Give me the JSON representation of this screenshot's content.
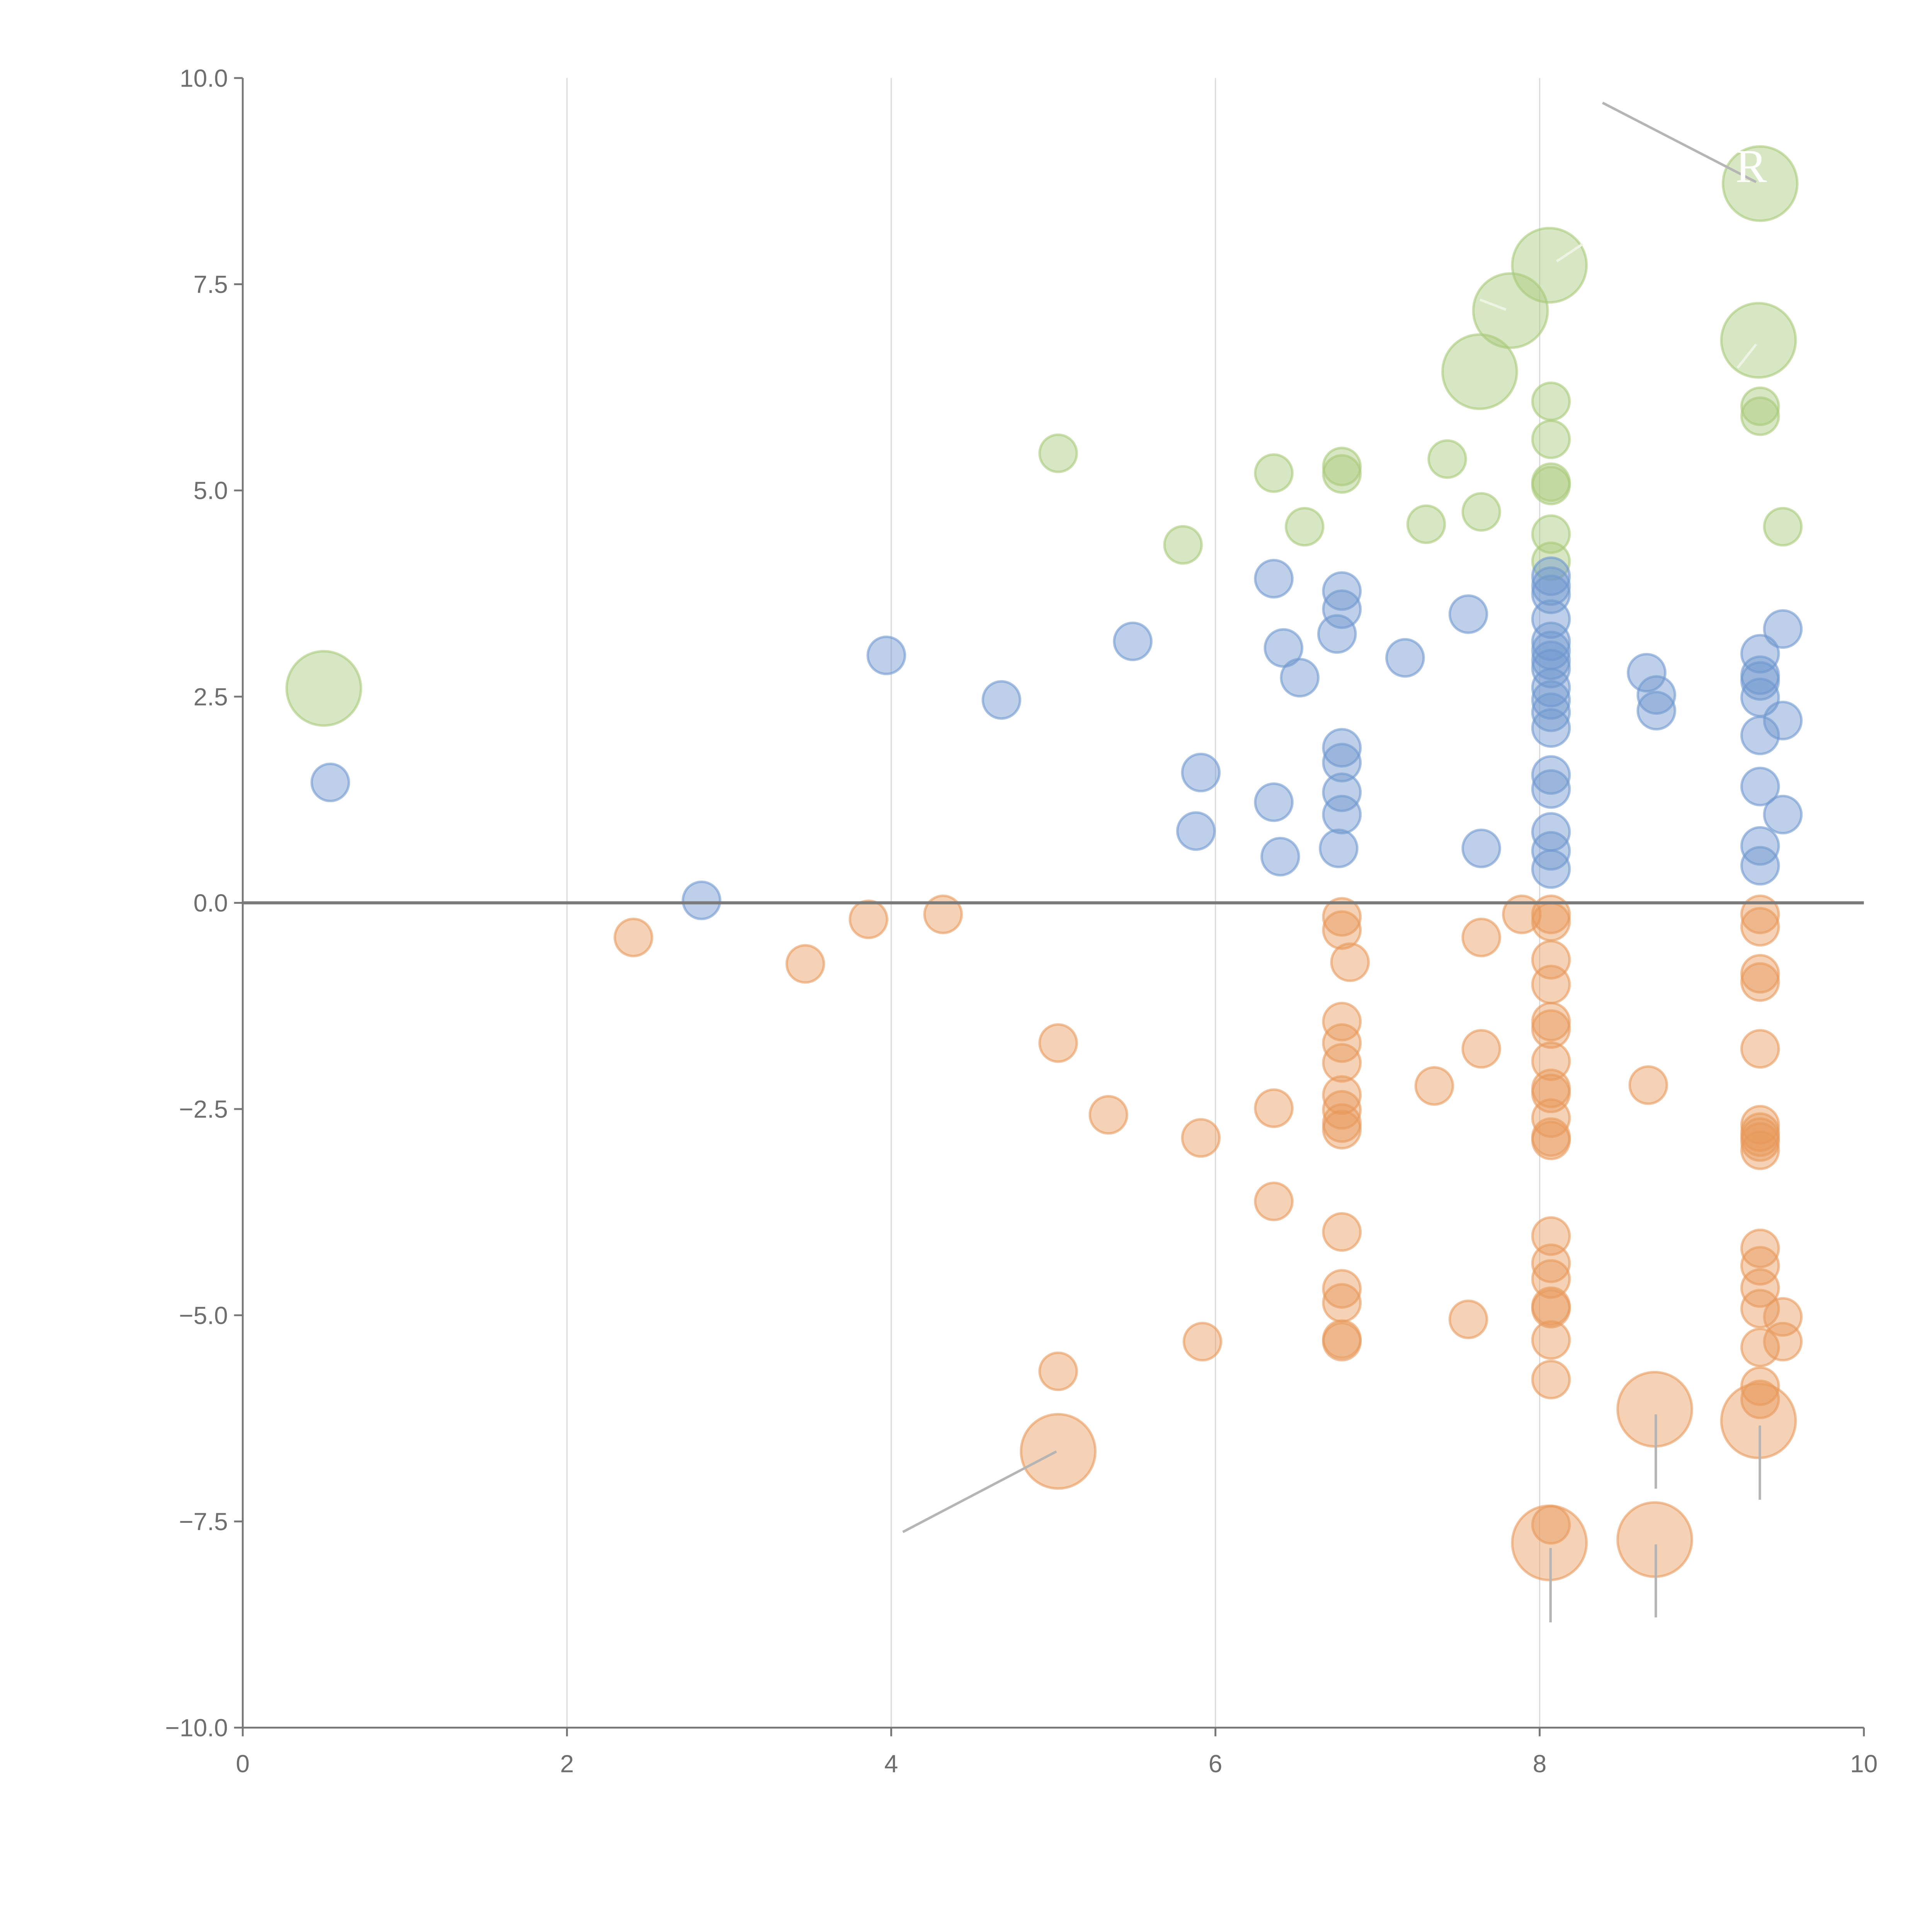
{
  "chart_data": {
    "type": "scatter",
    "title": "",
    "xlabel": "",
    "ylabel": "",
    "xlim": [
      0,
      10
    ],
    "ylim": [
      -10,
      10
    ],
    "grid": "vertical",
    "x_ticks": [
      "0",
      "2",
      "4",
      "6",
      "8",
      "10"
    ],
    "x_tick_values": [
      0,
      2,
      4,
      6,
      8,
      10
    ],
    "y_ticks": [
      "10.0",
      "7.5",
      "5.0",
      "2.5",
      "0.0",
      "−2.5",
      "−5.0",
      "−7.5",
      "−10.0"
    ],
    "y_tick_values": [
      10,
      7.5,
      5,
      2.5,
      0,
      -2.5,
      -5,
      -7.5,
      -10
    ],
    "annotation_label": "R",
    "point_format": "[x, y, size]",
    "series": [
      {
        "name": "green",
        "color": "#a9c97a",
        "points": [
          [
            0.5,
            2.6,
            2
          ],
          [
            5.03,
            5.45,
            1
          ],
          [
            5.8,
            4.34,
            1
          ],
          [
            6.36,
            5.21,
            1
          ],
          [
            6.55,
            4.56,
            1
          ],
          [
            6.78,
            5.29,
            1
          ],
          [
            6.78,
            5.2,
            1
          ],
          [
            7.3,
            4.59,
            1
          ],
          [
            7.43,
            5.38,
            1
          ],
          [
            7.64,
            4.74,
            1
          ],
          [
            7.63,
            6.44,
            2
          ],
          [
            7.82,
            7.18,
            2
          ],
          [
            8.06,
            7.73,
            2
          ],
          [
            8.07,
            6.08,
            1
          ],
          [
            8.07,
            5.62,
            1
          ],
          [
            8.07,
            5.1,
            1
          ],
          [
            8.07,
            5.06,
            1
          ],
          [
            8.07,
            4.47,
            1
          ],
          [
            8.07,
            4.14,
            1
          ],
          [
            9.36,
            8.72,
            2
          ],
          [
            9.35,
            6.82,
            2
          ],
          [
            9.36,
            6.02,
            1
          ],
          [
            9.36,
            5.9,
            1
          ],
          [
            9.5,
            4.56,
            1
          ]
        ]
      },
      {
        "name": "blue",
        "color": "#6f97cf",
        "points": [
          [
            0.54,
            1.46,
            1
          ],
          [
            2.83,
            0.03,
            1
          ],
          [
            3.97,
            3.0,
            1
          ],
          [
            4.68,
            2.46,
            1
          ],
          [
            5.49,
            3.17,
            1
          ],
          [
            5.91,
            1.58,
            1
          ],
          [
            5.88,
            0.87,
            1
          ],
          [
            6.36,
            3.93,
            1
          ],
          [
            6.42,
            3.09,
            1
          ],
          [
            6.52,
            2.73,
            1
          ],
          [
            6.36,
            1.22,
            1
          ],
          [
            6.4,
            0.56,
            1
          ],
          [
            6.78,
            3.78,
            1
          ],
          [
            6.78,
            3.56,
            1
          ],
          [
            6.75,
            3.26,
            1
          ],
          [
            6.78,
            1.88,
            1
          ],
          [
            6.78,
            1.7,
            1
          ],
          [
            6.78,
            1.34,
            1
          ],
          [
            6.78,
            1.07,
            1
          ],
          [
            6.76,
            0.66,
            1
          ],
          [
            7.17,
            2.97,
            1
          ],
          [
            7.56,
            3.5,
            1
          ],
          [
            7.64,
            0.66,
            1
          ],
          [
            8.07,
            3.96,
            1
          ],
          [
            8.07,
            3.84,
            1
          ],
          [
            8.07,
            3.74,
            1
          ],
          [
            8.07,
            3.44,
            1
          ],
          [
            8.07,
            3.17,
            1
          ],
          [
            8.07,
            3.06,
            1
          ],
          [
            8.07,
            2.94,
            1
          ],
          [
            8.07,
            2.84,
            1
          ],
          [
            8.07,
            2.61,
            1
          ],
          [
            8.07,
            2.46,
            1
          ],
          [
            8.07,
            2.31,
            1
          ],
          [
            8.07,
            2.12,
            1
          ],
          [
            8.07,
            1.55,
            1
          ],
          [
            8.07,
            1.38,
            1
          ],
          [
            8.07,
            0.86,
            1
          ],
          [
            8.07,
            0.63,
            1
          ],
          [
            8.07,
            0.41,
            1
          ],
          [
            8.66,
            2.79,
            1
          ],
          [
            8.72,
            2.52,
            1
          ],
          [
            8.72,
            2.33,
            1
          ],
          [
            9.36,
            3.02,
            1
          ],
          [
            9.36,
            2.76,
            1
          ],
          [
            9.36,
            2.69,
            1
          ],
          [
            9.36,
            2.49,
            1
          ],
          [
            9.36,
            2.03,
            1
          ],
          [
            9.36,
            1.41,
            1
          ],
          [
            9.36,
            0.69,
            1
          ],
          [
            9.36,
            0.45,
            1
          ],
          [
            9.5,
            3.32,
            1
          ],
          [
            9.5,
            2.21,
            1
          ],
          [
            9.5,
            1.07,
            1
          ]
        ]
      },
      {
        "name": "orange",
        "color": "#e89a5c",
        "points": [
          [
            2.41,
            -0.42,
            1
          ],
          [
            3.47,
            -0.74,
            1
          ],
          [
            3.86,
            -0.2,
            1
          ],
          [
            4.32,
            -0.14,
            1
          ],
          [
            5.03,
            -1.7,
            1
          ],
          [
            5.34,
            -2.57,
            1
          ],
          [
            5.91,
            -2.85,
            1
          ],
          [
            5.92,
            -5.32,
            1
          ],
          [
            5.03,
            -5.68,
            1
          ],
          [
            5.03,
            -6.65,
            2
          ],
          [
            6.36,
            -2.49,
            1
          ],
          [
            6.36,
            -3.62,
            1
          ],
          [
            6.78,
            -0.17,
            1
          ],
          [
            6.78,
            -0.33,
            1
          ],
          [
            6.78,
            -1.44,
            1
          ],
          [
            6.78,
            -1.7,
            1
          ],
          [
            6.78,
            -1.94,
            1
          ],
          [
            6.78,
            -2.33,
            1
          ],
          [
            6.78,
            -2.51,
            1
          ],
          [
            6.78,
            -2.67,
            1
          ],
          [
            6.78,
            -2.75,
            1
          ],
          [
            6.78,
            -3.99,
            1
          ],
          [
            6.78,
            -4.68,
            1
          ],
          [
            6.78,
            -4.85,
            1
          ],
          [
            6.78,
            -5.29,
            1
          ],
          [
            6.78,
            -5.32,
            1
          ],
          [
            6.83,
            -0.72,
            1
          ],
          [
            7.35,
            -2.22,
            1
          ],
          [
            7.64,
            -0.42,
            1
          ],
          [
            7.64,
            -1.77,
            1
          ],
          [
            7.56,
            -5.05,
            1
          ],
          [
            7.89,
            -0.14,
            1
          ],
          [
            8.07,
            -0.14,
            1
          ],
          [
            8.07,
            -0.23,
            1
          ],
          [
            8.07,
            -0.69,
            1
          ],
          [
            8.07,
            -0.99,
            1
          ],
          [
            8.07,
            -1.44,
            1
          ],
          [
            8.07,
            -1.53,
            1
          ],
          [
            8.07,
            -1.92,
            1
          ],
          [
            8.07,
            -2.25,
            1
          ],
          [
            8.07,
            -2.31,
            1
          ],
          [
            8.07,
            -2.61,
            1
          ],
          [
            8.07,
            -2.84,
            1
          ],
          [
            8.07,
            -2.88,
            1
          ],
          [
            8.07,
            -4.04,
            1
          ],
          [
            8.07,
            -4.37,
            1
          ],
          [
            8.07,
            -4.56,
            1
          ],
          [
            8.07,
            -4.89,
            1
          ],
          [
            8.07,
            -4.92,
            1
          ],
          [
            8.07,
            -5.3,
            1
          ],
          [
            8.07,
            -5.78,
            1
          ],
          [
            8.07,
            -7.54,
            1
          ],
          [
            8.06,
            -7.76,
            2
          ],
          [
            8.67,
            -2.21,
            1
          ],
          [
            8.71,
            -6.14,
            2
          ],
          [
            8.71,
            -7.72,
            2
          ],
          [
            9.36,
            -0.14,
            1
          ],
          [
            9.36,
            -0.29,
            1
          ],
          [
            9.36,
            -0.86,
            1
          ],
          [
            9.36,
            -0.96,
            1
          ],
          [
            9.36,
            -1.77,
            1
          ],
          [
            9.36,
            -2.69,
            1
          ],
          [
            9.36,
            -2.78,
            1
          ],
          [
            9.36,
            -2.84,
            1
          ],
          [
            9.36,
            -2.9,
            1
          ],
          [
            9.36,
            -3.0,
            1
          ],
          [
            9.36,
            -4.19,
            1
          ],
          [
            9.36,
            -4.4,
            1
          ],
          [
            9.36,
            -4.67,
            1
          ],
          [
            9.36,
            -4.92,
            1
          ],
          [
            9.36,
            -5.39,
            1
          ],
          [
            9.36,
            -5.86,
            1
          ],
          [
            9.36,
            -6.02,
            1
          ],
          [
            9.35,
            -6.28,
            2
          ],
          [
            9.5,
            -5.02,
            1
          ],
          [
            9.5,
            -5.32,
            1
          ]
        ]
      }
    ]
  }
}
